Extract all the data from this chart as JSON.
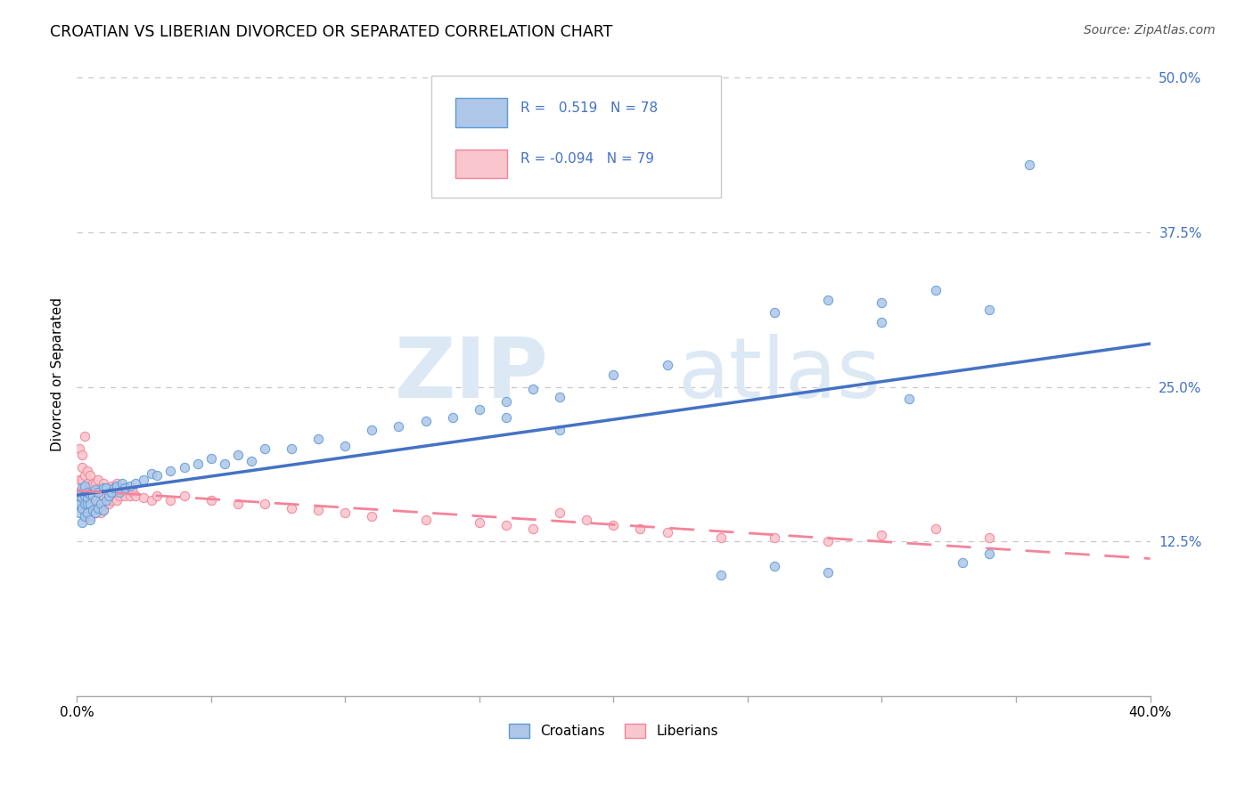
{
  "title": "CROATIAN VS LIBERIAN DIVORCED OR SEPARATED CORRELATION CHART",
  "source": "Source: ZipAtlas.com",
  "ylabel_label": "Divorced or Separated",
  "xlim": [
    0.0,
    0.4
  ],
  "ylim": [
    0.0,
    0.52
  ],
  "yticks": [
    0.125,
    0.25,
    0.375,
    0.5
  ],
  "ytick_labels": [
    "12.5%",
    "25.0%",
    "37.5%",
    "50.0%"
  ],
  "xtick_vals": [
    0.0,
    0.05,
    0.1,
    0.15,
    0.2,
    0.25,
    0.3,
    0.35,
    0.4
  ],
  "x_label_only_ends": true,
  "croatian_R": 0.519,
  "croatian_N": 78,
  "liberian_R": -0.094,
  "liberian_N": 79,
  "blue_line_color": "#4472c4",
  "pink_line_color": "#f4839a",
  "blue_dot_face": "#aec6e8",
  "blue_dot_edge": "#5b9bd5",
  "pink_dot_face": "#f9c6ce",
  "pink_dot_edge": "#f4839a",
  "ytick_color": "#4472c4",
  "watermark_color": "#dce9f5",
  "grid_color": "#c8c8c8",
  "legend_box_color": "#cccccc",
  "source_color": "#555555",
  "croatian_x": [
    0.001,
    0.001,
    0.001,
    0.002,
    0.002,
    0.002,
    0.002,
    0.003,
    0.003,
    0.003,
    0.003,
    0.004,
    0.004,
    0.004,
    0.004,
    0.005,
    0.005,
    0.005,
    0.006,
    0.006,
    0.007,
    0.007,
    0.007,
    0.008,
    0.008,
    0.009,
    0.01,
    0.01,
    0.011,
    0.011,
    0.012,
    0.013,
    0.014,
    0.015,
    0.016,
    0.017,
    0.018,
    0.02,
    0.022,
    0.025,
    0.028,
    0.03,
    0.035,
    0.04,
    0.045,
    0.05,
    0.055,
    0.06,
    0.065,
    0.07,
    0.08,
    0.09,
    0.1,
    0.11,
    0.12,
    0.13,
    0.14,
    0.15,
    0.16,
    0.17,
    0.18,
    0.2,
    0.22,
    0.24,
    0.26,
    0.28,
    0.3,
    0.32,
    0.34,
    0.355,
    0.26,
    0.28,
    0.3,
    0.31,
    0.33,
    0.34,
    0.16,
    0.18
  ],
  "croatian_y": [
    0.155,
    0.148,
    0.162,
    0.14,
    0.152,
    0.16,
    0.168,
    0.145,
    0.155,
    0.162,
    0.17,
    0.148,
    0.155,
    0.16,
    0.165,
    0.142,
    0.155,
    0.163,
    0.15,
    0.162,
    0.148,
    0.158,
    0.167,
    0.152,
    0.165,
    0.155,
    0.15,
    0.168,
    0.158,
    0.168,
    0.162,
    0.165,
    0.168,
    0.17,
    0.165,
    0.172,
    0.168,
    0.17,
    0.172,
    0.175,
    0.18,
    0.178,
    0.182,
    0.185,
    0.188,
    0.192,
    0.188,
    0.195,
    0.19,
    0.2,
    0.2,
    0.208,
    0.202,
    0.215,
    0.218,
    0.222,
    0.225,
    0.232,
    0.238,
    0.248,
    0.242,
    0.26,
    0.268,
    0.098,
    0.105,
    0.1,
    0.318,
    0.328,
    0.312,
    0.43,
    0.31,
    0.32,
    0.302,
    0.24,
    0.108,
    0.115,
    0.225,
    0.215
  ],
  "liberian_x": [
    0.001,
    0.001,
    0.001,
    0.001,
    0.002,
    0.002,
    0.002,
    0.002,
    0.002,
    0.003,
    0.003,
    0.003,
    0.003,
    0.003,
    0.004,
    0.004,
    0.004,
    0.004,
    0.005,
    0.005,
    0.005,
    0.005,
    0.006,
    0.006,
    0.006,
    0.007,
    0.007,
    0.007,
    0.008,
    0.008,
    0.008,
    0.009,
    0.009,
    0.01,
    0.01,
    0.01,
    0.011,
    0.011,
    0.012,
    0.012,
    0.013,
    0.013,
    0.014,
    0.015,
    0.015,
    0.016,
    0.017,
    0.018,
    0.019,
    0.02,
    0.021,
    0.022,
    0.025,
    0.028,
    0.03,
    0.035,
    0.04,
    0.05,
    0.06,
    0.07,
    0.08,
    0.09,
    0.1,
    0.11,
    0.13,
    0.15,
    0.16,
    0.17,
    0.18,
    0.19,
    0.2,
    0.21,
    0.22,
    0.24,
    0.26,
    0.28,
    0.3,
    0.32,
    0.34
  ],
  "liberian_y": [
    0.155,
    0.165,
    0.175,
    0.2,
    0.155,
    0.165,
    0.175,
    0.185,
    0.195,
    0.148,
    0.158,
    0.168,
    0.178,
    0.21,
    0.152,
    0.162,
    0.172,
    0.182,
    0.145,
    0.158,
    0.168,
    0.178,
    0.152,
    0.162,
    0.172,
    0.148,
    0.16,
    0.172,
    0.152,
    0.163,
    0.175,
    0.148,
    0.162,
    0.15,
    0.162,
    0.172,
    0.155,
    0.167,
    0.155,
    0.168,
    0.158,
    0.17,
    0.162,
    0.158,
    0.172,
    0.162,
    0.165,
    0.162,
    0.168,
    0.162,
    0.165,
    0.162,
    0.16,
    0.158,
    0.162,
    0.158,
    0.162,
    0.158,
    0.155,
    0.155,
    0.152,
    0.15,
    0.148,
    0.145,
    0.142,
    0.14,
    0.138,
    0.135,
    0.148,
    0.142,
    0.138,
    0.135,
    0.132,
    0.128,
    0.128,
    0.125,
    0.13,
    0.135,
    0.128
  ]
}
